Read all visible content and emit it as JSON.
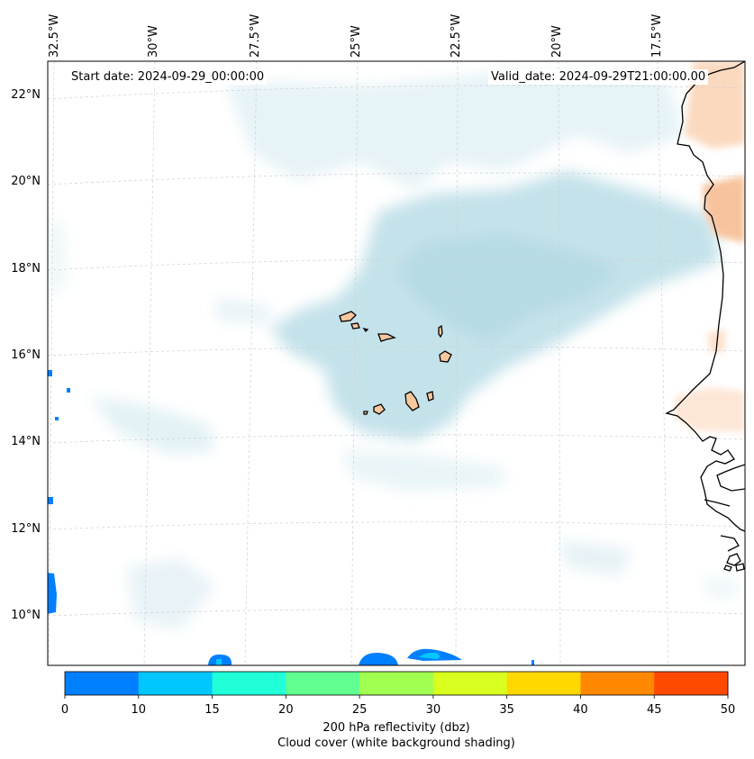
{
  "map": {
    "start_date": "Start date: 2024-09-29_00:00:00",
    "valid_date": "Valid_date: 2024-09-29T21:00:00.00",
    "lon_labels": [
      "32.5°W",
      "30°W",
      "27.5°W",
      "25°W",
      "22.5°W",
      "20°W",
      "17.5°W"
    ],
    "lat_labels": [
      "22°N",
      "20°N",
      "18°N",
      "16°N",
      "14°N",
      "12°N",
      "10°N"
    ]
  },
  "colorbar": {
    "ticks": [
      "0",
      "10",
      "15",
      "20",
      "25",
      "30",
      "35",
      "40",
      "45",
      "50"
    ],
    "colors": [
      "#0080ff",
      "#00c8ff",
      "#20ffd8",
      "#60ff90",
      "#a0ff50",
      "#d8ff20",
      "#ffd800",
      "#ff8800",
      "#ff4800"
    ],
    "label_line1": "200 hPa reflectivity (dbz)",
    "label_line2": "Cloud cover (white background shading)"
  },
  "colors": {
    "cloud": "#bcdfe8",
    "land": "#f7c8a0",
    "coast": "#000000",
    "grid": "#c8c8c8"
  }
}
